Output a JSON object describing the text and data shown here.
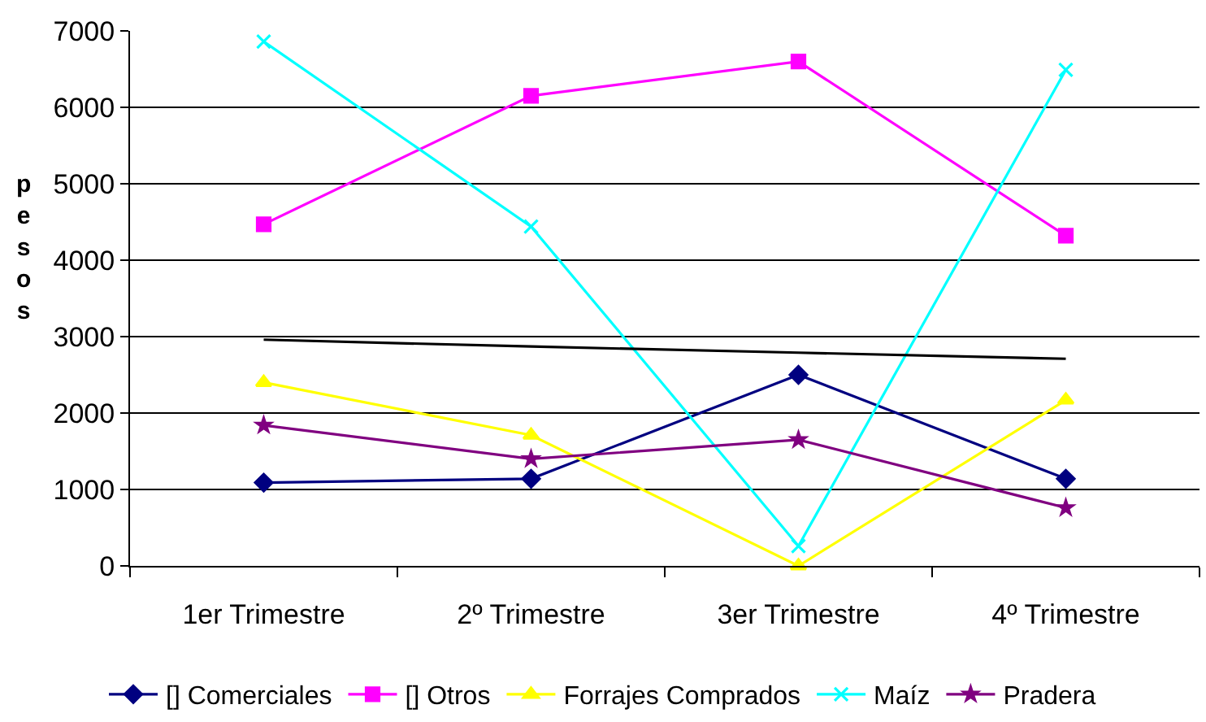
{
  "chart_data": {
    "type": "line",
    "ylabel": "pesos",
    "categories": [
      "1er Trimestre",
      "2º Trimestre",
      "3er Trimestre",
      "4º Trimestre"
    ],
    "series": [
      {
        "name": "[] Comerciales",
        "color": "#000080",
        "marker": "diamond",
        "values": [
          1090,
          1140,
          2500,
          1140
        ]
      },
      {
        "name": "[] Otros",
        "color": "#ff00ff",
        "marker": "square",
        "values": [
          4470,
          6150,
          6600,
          4320
        ]
      },
      {
        "name": "Forrajes Comprados",
        "color": "#ffff00",
        "marker": "triangle",
        "values": [
          2400,
          1710,
          0,
          2170
        ]
      },
      {
        "name": "Maíz",
        "color": "#00ffff",
        "marker": "cross",
        "values": [
          6860,
          4440,
          260,
          6490
        ]
      },
      {
        "name": "Pradera",
        "color": "#800080",
        "marker": "star",
        "values": [
          1840,
          1400,
          1650,
          760
        ]
      },
      {
        "type": "line",
        "color": "#000000",
        "marker": "none",
        "values": [
          2960,
          2870,
          2790,
          2710
        ]
      }
    ],
    "ylim": [
      0,
      7000
    ],
    "yticks": [
      0,
      1000,
      2000,
      3000,
      4000,
      5000,
      6000,
      7000
    ],
    "grid": "y",
    "legend": "bottom"
  }
}
